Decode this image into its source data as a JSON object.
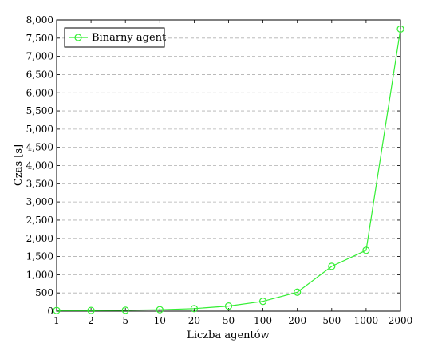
{
  "chart_data": {
    "type": "line",
    "categories": [
      "1",
      "2",
      "5",
      "10",
      "20",
      "50",
      "100",
      "200",
      "500",
      "1000",
      "2000"
    ],
    "series": [
      {
        "name": "Binarny agent",
        "values": [
          18,
          20,
          25,
          40,
          70,
          140,
          270,
          520,
          1230,
          1670,
          7750
        ],
        "color": "#33ee33"
      }
    ],
    "xlabel": "Liczba agentów",
    "ylabel": "Czas [s]",
    "ylim": [
      0,
      8000
    ],
    "yticks": [
      0,
      500,
      1000,
      1500,
      2000,
      2500,
      3000,
      3500,
      4000,
      4500,
      5000,
      5500,
      6000,
      6500,
      7000,
      7500,
      8000
    ],
    "ytick_labels": [
      "0",
      "500",
      "1,000",
      "1,500",
      "2,000",
      "2,500",
      "3,000",
      "3,500",
      "4,000",
      "4,500",
      "5,000",
      "5,500",
      "6,000",
      "6,500",
      "7,000",
      "7,500",
      "8,000"
    ],
    "grid": "horizontal-dashed",
    "legend_position": "top-left",
    "marker": "circle"
  }
}
